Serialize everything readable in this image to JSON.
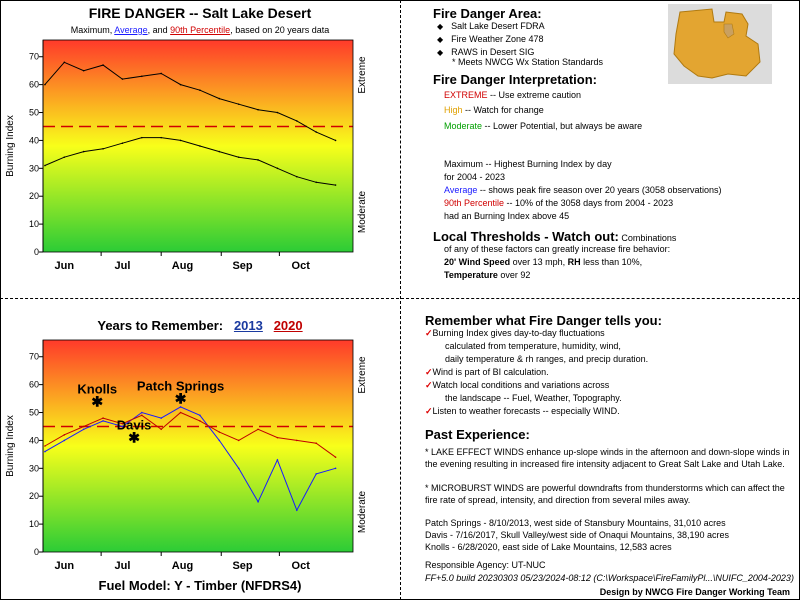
{
  "top_chart": {
    "title": "FIRE DANGER -- Salt Lake Desert",
    "subtitle": {
      "p1": "Maximum, ",
      "avg": "Average",
      "p2": ", and ",
      "pct": "90th Percentile",
      "p3": ", based on 20 years data"
    }
  },
  "bottom_chart": {
    "title_prefix": "Years to Remember:",
    "year1": "2013",
    "year2": "2020",
    "footer": "Fuel Model: Y - Timber (NFDRS4)",
    "events": [
      {
        "label": "Knolls"
      },
      {
        "label": "Patch Springs"
      },
      {
        "label": "Davis"
      }
    ]
  },
  "chart_data": [
    {
      "type": "line",
      "title": "FIRE DANGER -- Salt Lake Desert",
      "subtitle": "Maximum, Average, and 90th Percentile, based on 20 years data",
      "ylabel": "Burning Index",
      "ylim": [
        0,
        76
      ],
      "yticks": [
        0,
        10,
        20,
        30,
        40,
        50,
        60,
        70
      ],
      "months": [
        "Jun",
        "Jul",
        "Aug",
        "Sep",
        "Oct"
      ],
      "right_labels": {
        "extreme": "Extreme",
        "moderate": "Moderate"
      },
      "x_days": [
        1,
        11,
        21,
        31,
        41,
        51,
        61,
        71,
        81,
        91,
        101,
        111,
        121,
        131,
        141,
        151
      ],
      "series": [
        {
          "name": "Maximum",
          "color": "#000000",
          "values": [
            60,
            68,
            65,
            67,
            62,
            63,
            64,
            60,
            58,
            55,
            53,
            51,
            50,
            47,
            43,
            40
          ]
        },
        {
          "name": "Average",
          "color": "#000000",
          "values": [
            31,
            34,
            36,
            37,
            39,
            41,
            41,
            40,
            38,
            36,
            34,
            33,
            30,
            27,
            25,
            24
          ]
        }
      ],
      "threshold": {
        "name": "90th Percentile",
        "value": 45,
        "color": "#d00000"
      }
    },
    {
      "type": "line",
      "title": "Years to Remember: 2013 2020",
      "ylabel": "Burning Index",
      "ylim": [
        0,
        76
      ],
      "yticks": [
        0,
        10,
        20,
        30,
        40,
        50,
        60,
        70
      ],
      "months": [
        "Jun",
        "Jul",
        "Aug",
        "Sep",
        "Oct"
      ],
      "right_labels": {
        "extreme": "Extreme",
        "moderate": "Moderate"
      },
      "x_days": [
        1,
        11,
        21,
        31,
        41,
        51,
        61,
        71,
        81,
        91,
        101,
        111,
        121,
        131,
        141,
        151
      ],
      "series": [
        {
          "name": "2013",
          "color": "#1a1aff",
          "values": [
            36,
            40,
            44,
            47,
            45,
            50,
            48,
            52,
            49,
            40,
            30,
            18,
            33,
            15,
            28,
            30
          ]
        },
        {
          "name": "2020",
          "color": "#c00000",
          "values": [
            38,
            42,
            45,
            48,
            46,
            49,
            44,
            50,
            47,
            43,
            40,
            44,
            41,
            40,
            39,
            34
          ]
        }
      ],
      "threshold": {
        "name": "90th Percentile",
        "value": 45,
        "color": "#d00000"
      },
      "events": [
        {
          "label": "Knolls",
          "day": 28,
          "value": 54
        },
        {
          "label": "Patch Springs",
          "day": 71,
          "value": 55
        },
        {
          "label": "Davis",
          "day": 47,
          "value": 41
        }
      ]
    }
  ],
  "area": {
    "heading": "Fire Danger Area:",
    "items": [
      "Salt Lake Desert FDRA",
      "Fire Weather Zone 478",
      "RAWS in Desert SIG"
    ],
    "note": "* Meets NWCG Wx Station Standards"
  },
  "interp": {
    "heading": "Fire Danger Interpretation:",
    "extreme_word": "EXTREME",
    "extreme_text": " -- Use extreme caution",
    "high_word": "High",
    "high_text": " -- Watch for change",
    "moderate_word": "Moderate",
    "moderate_text": " -- Lower Potential, but always be aware"
  },
  "defs": {
    "max_line1": "Maximum  -- Highest Burning Index by day",
    "max_line2": "for 2004 - 2023",
    "avg_word": "Average",
    "avg_text": " -- shows peak fire season over 20 years (3058 observations)",
    "pct_word": "90th Percentile",
    "pct_text": "  -- 10% of the 3058 days from 2004 - 2023",
    "pct_line2": "had an Burning Index above 45"
  },
  "thresholds": {
    "heading": "Local Thresholds - Watch out:",
    "heading_tail": "  Combinations",
    "line1": "of any of these factors can greatly increase fire behavior:",
    "wind_bold": "20' Wind Speed",
    "wind_text": " over 13 mph, ",
    "rh_bold": "RH",
    "rh_text": "  less than 10%,",
    "temp_bold": "Temperature",
    "temp_text": " over 92"
  },
  "remember": {
    "heading": "Remember what Fire Danger tells you:",
    "items": [
      {
        "text": "Burning Index gives day-to-day fluctuations"
      },
      {
        "text": "calculated from temperature, humidity, wind,",
        "indent": true
      },
      {
        "text": "daily temperature & rh ranges, and precip duration.",
        "indent": true
      },
      {
        "text": "Wind is part of BI calculation."
      },
      {
        "text": "Watch local conditions and variations across"
      },
      {
        "text": "the landscape -- Fuel, Weather, Topography.",
        "indent": true
      },
      {
        "text": "Listen to weather forecasts -- especially WIND."
      }
    ]
  },
  "past": {
    "heading": "Past Experience:",
    "para1": "* LAKE EFFECT WINDS enhance up-slope winds in the afternoon and down-slope winds in the evening resulting in increased fire intensity adjacent to Great Salt Lake and Utah Lake.",
    "para2": "* MICROBURST WINDS are powerful downdrafts from thunderstorms which can affect the fire rate of spread, intensity, and direction from several miles away.",
    "fires": [
      "Patch Springs - 8/10/2013, west side of Stansbury Mountains, 31,010 acres",
      "Davis - 7/16/2017, Skull Valley/west side of Onaqui Mountains, 38,190 acres",
      "Knolls - 6/28/2020, east side of Lake Mountains, 12,583 acres"
    ]
  },
  "footer": {
    "agency": "Responsible Agency: UT-NUC",
    "build": "FF+5.0 build 20230303 05/23/2024-08:12 (C:\\Workspace\\FireFamilyPl...\\NUIFC_2004-2023)",
    "credit": "Design by NWCG Fire Danger Working Team"
  },
  "colors": {
    "gradient_top": "#ff3a2a",
    "gradient_mid": "#f8ff1a",
    "gradient_bottom": "#2bcc36",
    "map_fill": "#e3a531",
    "map_bg": "#dcdcdc"
  }
}
